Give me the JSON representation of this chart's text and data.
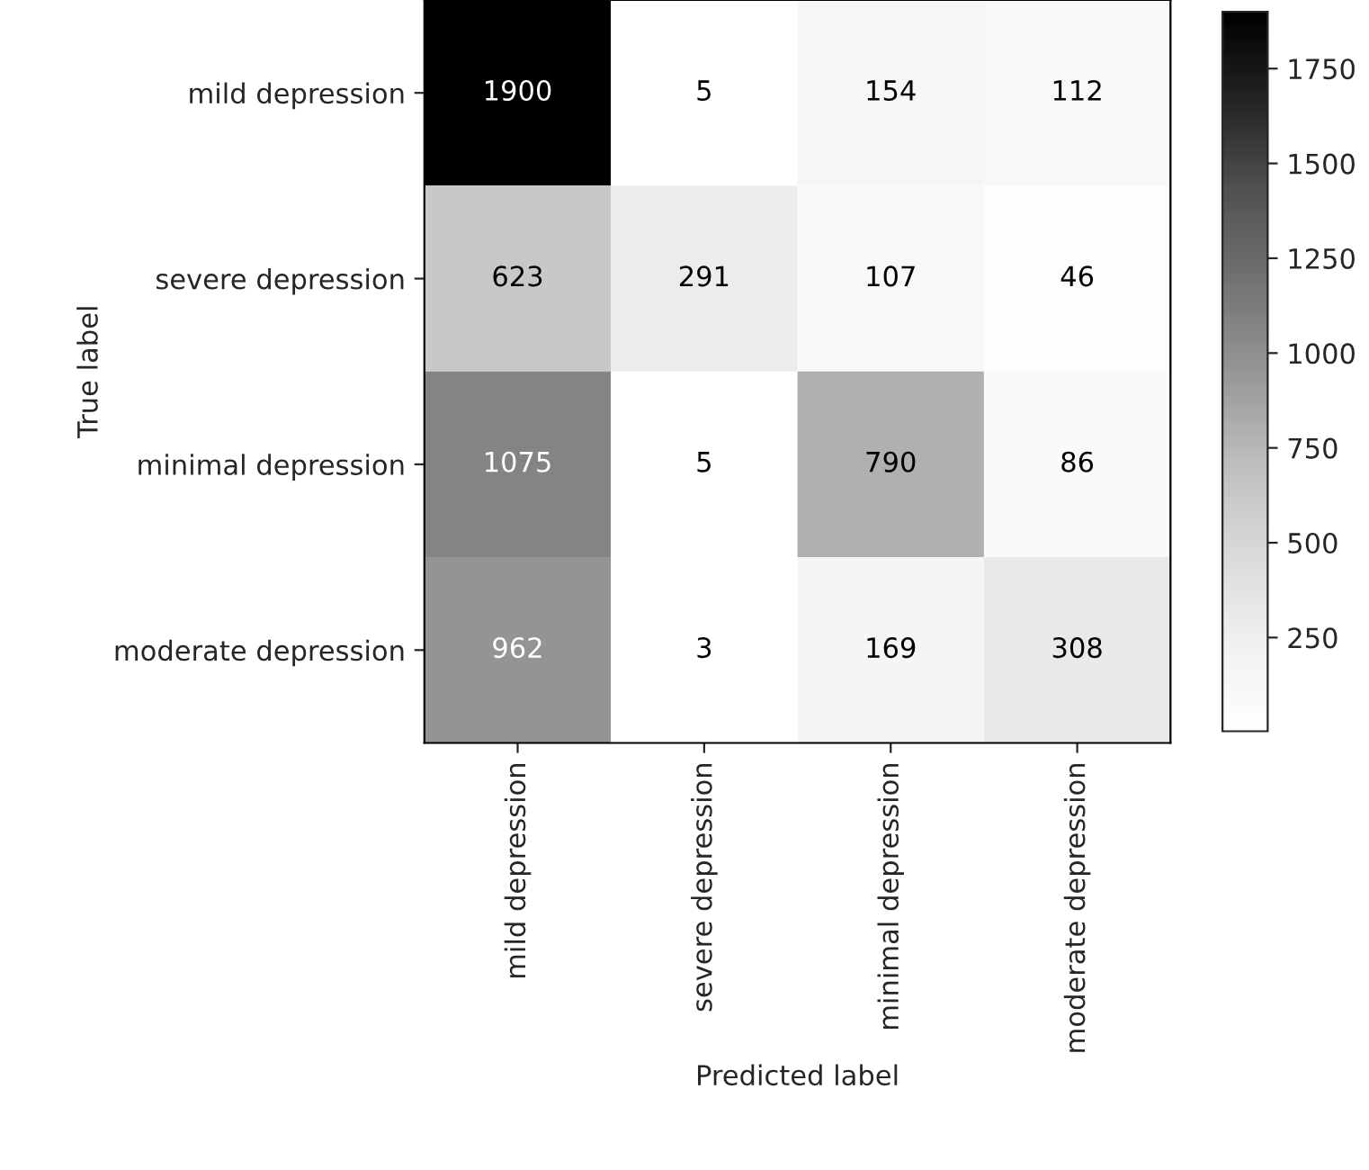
{
  "chart_data": {
    "type": "heatmap",
    "xlabel": "Predicted label",
    "ylabel": "True label",
    "categories": [
      "mild depression",
      "severe depression",
      "minimal depression",
      "moderate depression"
    ],
    "y_categories": [
      "mild depression",
      "severe depression",
      "minimal depression",
      "moderate depression"
    ],
    "cells": [
      [
        1900,
        5,
        154,
        112
      ],
      [
        623,
        291,
        107,
        46
      ],
      [
        1075,
        5,
        790,
        86
      ],
      [
        962,
        3,
        169,
        308
      ]
    ],
    "clim": [
      3,
      1900
    ],
    "cticks": [
      250,
      500,
      750,
      1000,
      1250,
      1500,
      1750
    ],
    "data_labels": true
  }
}
